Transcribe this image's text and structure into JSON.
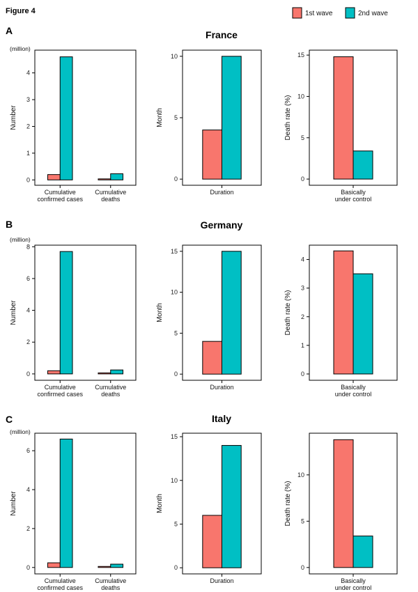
{
  "figure_title": "Figure 4",
  "legend": {
    "items": [
      {
        "label": "1st wave",
        "color": "#F8766D"
      },
      {
        "label": "2nd wave",
        "color": "#00BFC4"
      }
    ]
  },
  "colors": {
    "wave1": "#F8766D",
    "wave2": "#00BFC4"
  },
  "chart_data": [
    {
      "type": "bar",
      "panel": "A",
      "title": "France",
      "unit_note": "(million)",
      "ylabel": "Number",
      "xlabel": "",
      "categories": [
        "Cumulative\nconfirmed cases",
        "Cumulative\ndeaths"
      ],
      "series": [
        {
          "name": "1st wave",
          "values": [
            0.2,
            0.03
          ]
        },
        {
          "name": "2nd wave",
          "values": [
            4.6,
            0.23
          ]
        }
      ],
      "yticks": [
        0,
        1,
        2,
        3,
        4
      ],
      "ylim": [
        -0.2,
        4.85
      ]
    },
    {
      "type": "bar",
      "panel": "A",
      "title": "",
      "ylabel": "Month",
      "xlabel": "",
      "categories": [
        "Duration"
      ],
      "series": [
        {
          "name": "1st wave",
          "values": [
            4
          ]
        },
        {
          "name": "2nd wave",
          "values": [
            10
          ]
        }
      ],
      "yticks": [
        0,
        5,
        10
      ],
      "ylim": [
        -0.5,
        10.5
      ]
    },
    {
      "type": "bar",
      "panel": "A",
      "title": "",
      "ylabel": "Death rate (%)",
      "xlabel": "",
      "categories": [
        "Basically\nunder control"
      ],
      "series": [
        {
          "name": "1st wave",
          "values": [
            14.8
          ]
        },
        {
          "name": "2nd wave",
          "values": [
            3.4
          ]
        }
      ],
      "yticks": [
        0,
        5,
        10,
        15
      ],
      "ylim": [
        -0.75,
        15.6
      ]
    },
    {
      "type": "bar",
      "panel": "B",
      "title": "Germany",
      "unit_note": "(million)",
      "ylabel": "Number",
      "xlabel": "",
      "categories": [
        "Cumulative\nconfirmed cases",
        "Cumulative\ndeaths"
      ],
      "series": [
        {
          "name": "1st wave",
          "values": [
            0.2,
            0.03
          ]
        },
        {
          "name": "2nd wave",
          "values": [
            7.7,
            0.25
          ]
        }
      ],
      "yticks": [
        0,
        2,
        4,
        6,
        8
      ],
      "ylim": [
        -0.4,
        8.1
      ]
    },
    {
      "type": "bar",
      "panel": "B",
      "title": "",
      "ylabel": "Month",
      "xlabel": "",
      "categories": [
        "Duration"
      ],
      "series": [
        {
          "name": "1st wave",
          "values": [
            4
          ]
        },
        {
          "name": "2nd wave",
          "values": [
            15
          ]
        }
      ],
      "yticks": [
        0,
        5,
        10,
        15
      ],
      "ylim": [
        -0.75,
        15.75
      ]
    },
    {
      "type": "bar",
      "panel": "B",
      "title": "",
      "ylabel": "Death rate (%)",
      "xlabel": "",
      "categories": [
        "Basically\nunder control"
      ],
      "series": [
        {
          "name": "1st wave",
          "values": [
            4.3
          ]
        },
        {
          "name": "2nd wave",
          "values": [
            3.5
          ]
        }
      ],
      "yticks": [
        0,
        1,
        2,
        3,
        4
      ],
      "ylim": [
        -0.22,
        4.5
      ]
    },
    {
      "type": "bar",
      "panel": "C",
      "title": "Italy",
      "unit_note": "(million)",
      "ylabel": "Number",
      "xlabel": "",
      "categories": [
        "Cumulative\nconfirmed cases",
        "Cumulative\ndeaths"
      ],
      "series": [
        {
          "name": "1st wave",
          "values": [
            0.24,
            0.03
          ]
        },
        {
          "name": "2nd wave",
          "values": [
            6.6,
            0.17
          ]
        }
      ],
      "yticks": [
        0,
        2,
        4,
        6
      ],
      "ylim": [
        -0.33,
        6.9
      ]
    },
    {
      "type": "bar",
      "panel": "C",
      "title": "",
      "ylabel": "Month",
      "xlabel": "",
      "categories": [
        "Duration"
      ],
      "series": [
        {
          "name": "1st wave",
          "values": [
            6
          ]
        },
        {
          "name": "2nd wave",
          "values": [
            14
          ]
        }
      ],
      "yticks": [
        0,
        5,
        10,
        15
      ],
      "ylim": [
        -0.7,
        15.4
      ]
    },
    {
      "type": "bar",
      "panel": "C",
      "title": "",
      "ylabel": "Death rate (%)",
      "xlabel": "",
      "categories": [
        "Basically\nunder control"
      ],
      "series": [
        {
          "name": "1st wave",
          "values": [
            13.8
          ]
        },
        {
          "name": "2nd wave",
          "values": [
            3.4
          ]
        }
      ],
      "yticks": [
        0,
        5,
        10
      ],
      "ylim": [
        -0.69,
        14.5
      ]
    }
  ]
}
